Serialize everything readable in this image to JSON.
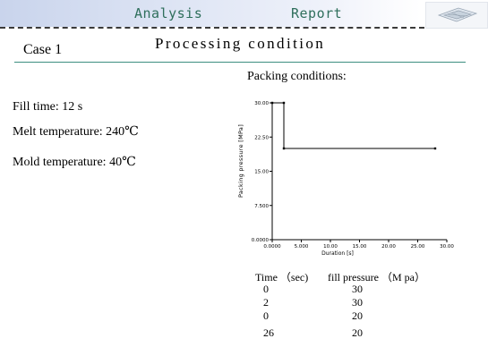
{
  "header": {
    "left_label": "Analysis",
    "right_label": "Report",
    "thumbnail_icon": "model-thumbnail-icon",
    "accent_color": "#2f6f5c"
  },
  "case_title": "Case 1",
  "subtitle": "Processing condition",
  "params": {
    "fill_time": "Fill time: 12 s",
    "melt_temperature": "Melt temperature:  240℃",
    "mold_temperature": "Mold temperature: 40℃"
  },
  "packing_heading": "Packing conditions:",
  "chart_data": {
    "type": "line",
    "ylabel": "Packing pressure [MPa]",
    "xlabel": "Duration [s]",
    "xlim": [
      0,
      30
    ],
    "ylim": [
      0,
      30
    ],
    "x_ticks": [
      "0.0000",
      "5.000",
      "10.00",
      "15.00",
      "20.00",
      "25.00",
      "30.00"
    ],
    "y_ticks": [
      "0.0000",
      "7.500",
      "15.00",
      "22.50",
      "30.00"
    ],
    "x_tick_values": [
      0,
      5,
      10,
      15,
      20,
      25,
      30
    ],
    "y_tick_values": [
      0,
      7.5,
      15,
      22.5,
      30
    ],
    "series": [
      {
        "x": [
          0,
          2,
          2,
          28
        ],
        "y": [
          30,
          30,
          20,
          20
        ]
      }
    ],
    "grid": false
  },
  "table": {
    "headers": [
      "Time  （sec)",
      "fill pressure （M pa）"
    ],
    "rows": [
      [
        "0",
        "30"
      ],
      [
        "2",
        "30"
      ],
      [
        "0",
        "20"
      ],
      [
        "26",
        "20"
      ]
    ]
  }
}
